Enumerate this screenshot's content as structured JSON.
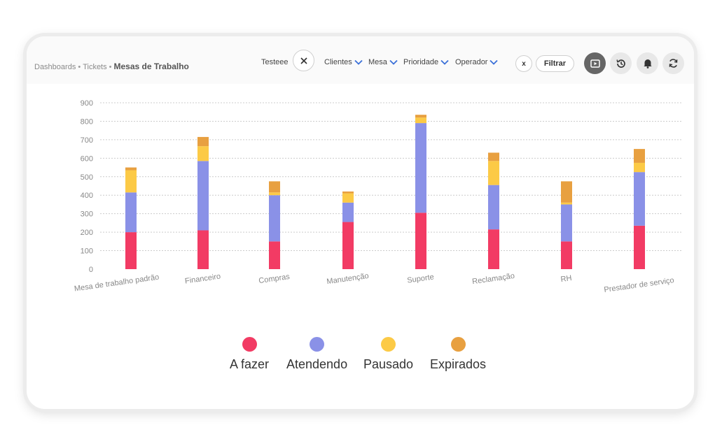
{
  "breadcrumb": {
    "items": [
      "Dashboards",
      "Tickets"
    ],
    "current": "Mesas de Trabalho"
  },
  "filters": {
    "selected_value": "Testeee",
    "dropdowns": [
      "Clientes",
      "Mesa",
      "Prioridade",
      "Operador"
    ],
    "clear_label": "x",
    "apply_label": "Filtrar"
  },
  "toolbar": {
    "icons": [
      "play-icon",
      "history-icon",
      "bell-icon",
      "refresh-icon"
    ]
  },
  "colors": {
    "a_fazer": "#f23b64",
    "atendendo": "#8a91e7",
    "pausado": "#fcca46",
    "expirados": "#e8a040",
    "grid": "#cccccc",
    "axis_text": "#888888"
  },
  "chart_data": {
    "type": "bar",
    "stacked": true,
    "categories": [
      "Mesa de trabalho padrão",
      "Financeiro",
      "Compras",
      "Manutenção",
      "Suporte",
      "Reclamação",
      "RH",
      "Prestador de serviço"
    ],
    "series": [
      {
        "name": "A fazer",
        "values": [
          200,
          210,
          150,
          255,
          305,
          215,
          150,
          235
        ]
      },
      {
        "name": "Atendendo",
        "values": [
          215,
          375,
          250,
          105,
          485,
          240,
          200,
          290
        ]
      },
      {
        "name": "Pausado",
        "values": [
          120,
          80,
          15,
          50,
          30,
          130,
          10,
          50
        ]
      },
      {
        "name": "Expirados",
        "values": [
          15,
          50,
          60,
          10,
          15,
          45,
          115,
          75
        ]
      }
    ],
    "yticks": [
      0,
      100,
      200,
      300,
      400,
      500,
      600,
      700,
      800,
      900
    ],
    "ylim": [
      0,
      900
    ],
    "grid": true,
    "legend_position": "bottom"
  }
}
